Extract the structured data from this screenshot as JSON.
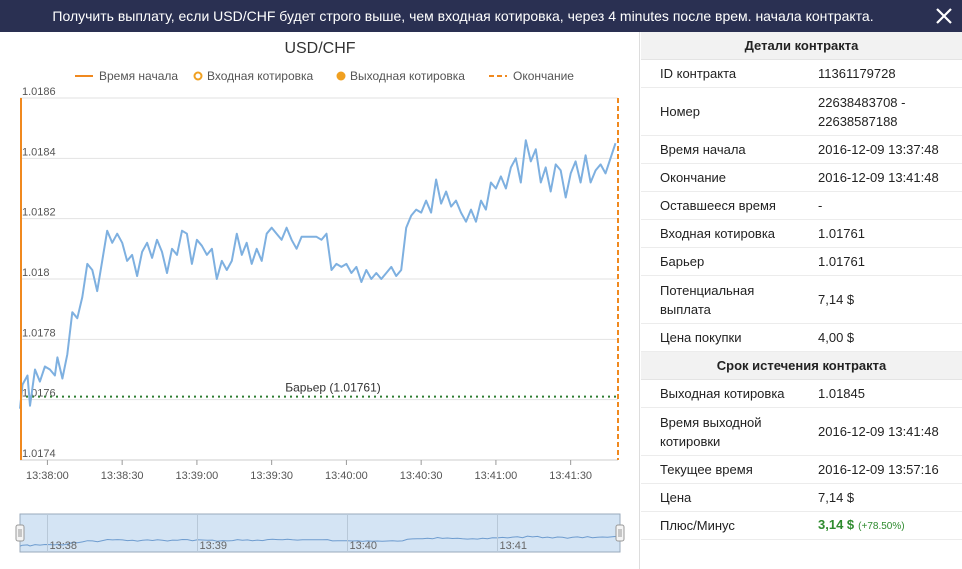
{
  "header": {
    "title": "Получить выплату, если USD/CHF будет строго выше, чем входная котировка, через 4 minutes после врем. начала контракта."
  },
  "chart_data": {
    "type": "line",
    "title": "USD/CHF",
    "legend": [
      {
        "name": "Время начала",
        "style": "solid-line",
        "color": "#f0891f"
      },
      {
        "name": "Входная котировка",
        "style": "ring",
        "color": "#f0a020"
      },
      {
        "name": "Выходная котировка",
        "style": "dot",
        "color": "#f0a020"
      },
      {
        "name": "Окончание",
        "style": "dashed-line",
        "color": "#f0891f"
      }
    ],
    "yticks": [
      "1.0186",
      "1.0184",
      "1.0182",
      "1.018",
      "1.0178",
      "1.0176",
      "1.0174"
    ],
    "yvalues": [
      1.0186,
      1.0184,
      1.0182,
      1.018,
      1.0178,
      1.0176,
      1.0174
    ],
    "ylim": [
      1.0174,
      1.0186
    ],
    "xticks": [
      "13:38:00",
      "13:38:30",
      "13:39:00",
      "13:39:30",
      "13:40:00",
      "13:40:30",
      "13:41:00",
      "13:41:30"
    ],
    "xtick_seconds": [
      0,
      30,
      60,
      90,
      120,
      150,
      180,
      210
    ],
    "x_range_seconds": [
      -11,
      229
    ],
    "start_time_seconds": -11,
    "end_time_seconds": 229,
    "barrier": {
      "label": "Барьер (1.01761)",
      "value": 1.01761,
      "color": "#2e7d32"
    },
    "series_color": "#7eb0e0",
    "series": [
      [
        -11,
        1.01757
      ],
      [
        -10,
        1.01765
      ],
      [
        -8,
        1.01768
      ],
      [
        -7,
        1.01758
      ],
      [
        -5,
        1.0177
      ],
      [
        -3,
        1.01766
      ],
      [
        -1,
        1.01771
      ],
      [
        1,
        1.0177
      ],
      [
        3,
        1.01768
      ],
      [
        4,
        1.01774
      ],
      [
        6,
        1.01767
      ],
      [
        8,
        1.01775
      ],
      [
        10,
        1.01789
      ],
      [
        12,
        1.01787
      ],
      [
        14,
        1.01794
      ],
      [
        16,
        1.01805
      ],
      [
        18,
        1.01803
      ],
      [
        20,
        1.01796
      ],
      [
        22,
        1.01806
      ],
      [
        24,
        1.01816
      ],
      [
        26,
        1.01812
      ],
      [
        28,
        1.01815
      ],
      [
        30,
        1.01812
      ],
      [
        32,
        1.01806
      ],
      [
        34,
        1.01808
      ],
      [
        36,
        1.01801
      ],
      [
        38,
        1.01809
      ],
      [
        40,
        1.01812
      ],
      [
        42,
        1.01807
      ],
      [
        44,
        1.01813
      ],
      [
        46,
        1.01809
      ],
      [
        48,
        1.01802
      ],
      [
        50,
        1.0181
      ],
      [
        52,
        1.01808
      ],
      [
        54,
        1.01816
      ],
      [
        56,
        1.01815
      ],
      [
        58,
        1.01805
      ],
      [
        60,
        1.01813
      ],
      [
        62,
        1.01811
      ],
      [
        64,
        1.01808
      ],
      [
        66,
        1.0181
      ],
      [
        68,
        1.018
      ],
      [
        70,
        1.01806
      ],
      [
        72,
        1.01803
      ],
      [
        74,
        1.01806
      ],
      [
        76,
        1.01815
      ],
      [
        78,
        1.01808
      ],
      [
        80,
        1.01812
      ],
      [
        82,
        1.01805
      ],
      [
        84,
        1.0181
      ],
      [
        86,
        1.01806
      ],
      [
        88,
        1.01815
      ],
      [
        90,
        1.01817
      ],
      [
        92,
        1.01815
      ],
      [
        94,
        1.01813
      ],
      [
        96,
        1.01817
      ],
      [
        98,
        1.01813
      ],
      [
        100,
        1.0181
      ],
      [
        102,
        1.01814
      ],
      [
        104,
        1.01814
      ],
      [
        106,
        1.01814
      ],
      [
        108,
        1.01814
      ],
      [
        110,
        1.01813
      ],
      [
        112,
        1.01815
      ],
      [
        114,
        1.01803
      ],
      [
        116,
        1.01805
      ],
      [
        118,
        1.01804
      ],
      [
        120,
        1.01805
      ],
      [
        122,
        1.01802
      ],
      [
        124,
        1.01804
      ],
      [
        126,
        1.01799
      ],
      [
        128,
        1.01803
      ],
      [
        130,
        1.018
      ],
      [
        132,
        1.01802
      ],
      [
        134,
        1.018
      ],
      [
        136,
        1.01802
      ],
      [
        138,
        1.01804
      ],
      [
        140,
        1.01801
      ],
      [
        142,
        1.01803
      ],
      [
        144,
        1.01817
      ],
      [
        146,
        1.01821
      ],
      [
        148,
        1.01823
      ],
      [
        150,
        1.01822
      ],
      [
        152,
        1.01826
      ],
      [
        154,
        1.01822
      ],
      [
        156,
        1.01833
      ],
      [
        158,
        1.01825
      ],
      [
        160,
        1.01829
      ],
      [
        162,
        1.01824
      ],
      [
        164,
        1.01826
      ],
      [
        166,
        1.01822
      ],
      [
        168,
        1.01819
      ],
      [
        170,
        1.01823
      ],
      [
        172,
        1.01819
      ],
      [
        174,
        1.01826
      ],
      [
        176,
        1.01823
      ],
      [
        178,
        1.01832
      ],
      [
        180,
        1.0183
      ],
      [
        182,
        1.01834
      ],
      [
        184,
        1.0183
      ],
      [
        186,
        1.01837
      ],
      [
        188,
        1.0184
      ],
      [
        190,
        1.01832
      ],
      [
        192,
        1.01846
      ],
      [
        194,
        1.01839
      ],
      [
        196,
        1.01843
      ],
      [
        198,
        1.01832
      ],
      [
        200,
        1.01837
      ],
      [
        202,
        1.01829
      ],
      [
        204,
        1.01838
      ],
      [
        206,
        1.01836
      ],
      [
        208,
        1.01827
      ],
      [
        210,
        1.01835
      ],
      [
        212,
        1.01839
      ],
      [
        214,
        1.01832
      ],
      [
        216,
        1.01841
      ],
      [
        218,
        1.01832
      ],
      [
        220,
        1.01836
      ],
      [
        222,
        1.01838
      ],
      [
        224,
        1.01835
      ],
      [
        226,
        1.0184
      ],
      [
        228,
        1.01845
      ]
    ],
    "navigator_labels": [
      "13:38",
      "13:39",
      "13:40",
      "13:41"
    ],
    "navigator_seconds": [
      0,
      60,
      120,
      180
    ]
  },
  "details": {
    "section1_title": "Детали контракта",
    "rows1": [
      {
        "label": "ID контракта",
        "value": "11361179728"
      },
      {
        "label": "Номер",
        "value": "22638483708 - 22638587188"
      },
      {
        "label": "Время начала",
        "value": "2016-12-09 13:37:48"
      },
      {
        "label": "Окончание",
        "value": "2016-12-09 13:41:48"
      },
      {
        "label": "Оставшееся время",
        "value": "-"
      },
      {
        "label": "Входная котировка",
        "value": "1.01761"
      },
      {
        "label": "Барьер",
        "value": "1.01761"
      },
      {
        "label": "Потенциальная выплата",
        "value": "7,14 $"
      },
      {
        "label": "Цена покупки",
        "value": "4,00 $"
      }
    ],
    "section2_title": "Срок истечения контракта",
    "rows2": [
      {
        "label": "Выходная котировка",
        "value": "1.01845"
      },
      {
        "label": "Время выходной котировки",
        "value": "2016-12-09 13:41:48"
      },
      {
        "label": "Текущее время",
        "value": "2016-12-09 13:57:16"
      },
      {
        "label": "Цена",
        "value": "7,14 $"
      }
    ],
    "profit_label": "Плюс/Минус",
    "profit_value": "3,14 $",
    "profit_pct": "(+78.50%)",
    "profit_color": "#2e8b2e"
  }
}
